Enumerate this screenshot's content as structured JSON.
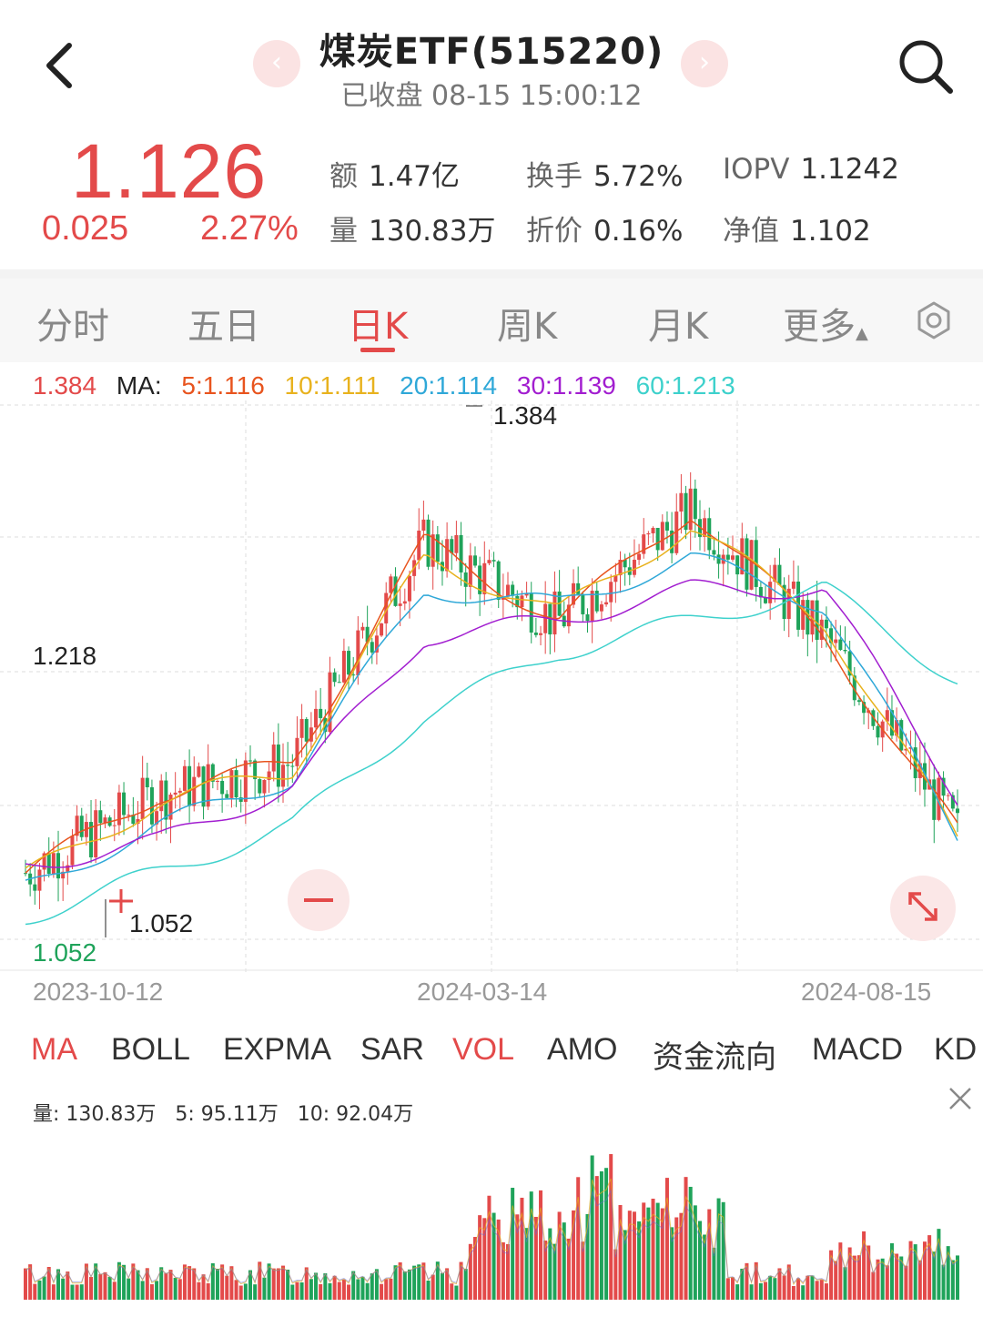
{
  "header": {
    "title": "煤炭ETF(515220)",
    "subtitle": "已收盘 08-15 15:00:12",
    "prev_label": "‹",
    "next_label": "›"
  },
  "quote": {
    "price": "1.126",
    "change": "0.025",
    "change_pct": "2.27%",
    "stats": {
      "amount_label": "额",
      "amount": "1.47亿",
      "turnover_label": "换手",
      "turnover": "5.72%",
      "iopv_label": "IOPV",
      "iopv": "1.1242",
      "volume_label": "量",
      "volume": "130.83万",
      "discount_label": "折价",
      "discount": "0.16%",
      "nav_label": "净值",
      "nav": "1.102"
    }
  },
  "tabs": [
    "分时",
    "五日",
    "日K",
    "周K",
    "月K",
    "更多"
  ],
  "active_tab": "日K",
  "ma_legend": {
    "price": "1.384",
    "label": "MA:",
    "ma5": "5:1.116",
    "ma10": "10:1.111",
    "ma20": "20:1.114",
    "ma30": "30:1.139",
    "ma60": "60:1.213"
  },
  "colors": {
    "up": "#e34a4a",
    "down": "#1fa35a",
    "ma5": "#e8541e",
    "ma10": "#e8b21e",
    "ma20": "#2fa8d8",
    "ma30": "#a21ed0",
    "ma60": "#3ed1cc"
  },
  "chart_data": {
    "type": "line",
    "title": "",
    "ylim": [
      1.052,
      1.384
    ],
    "y_ticks": [
      "1.218",
      "1.052"
    ],
    "high_label": "1.384",
    "low_label": "1.052",
    "current_low_label": "1.052",
    "x_ticks": [
      "2023-10-12",
      "2024-03-14",
      "2024-08-15"
    ],
    "x": [
      "2023-10-12",
      "2023-12-01",
      "2024-01-15",
      "2024-03-14",
      "2024-04-20",
      "2024-05-28",
      "2024-07-01",
      "2024-08-15"
    ],
    "series": [
      {
        "name": "5",
        "values": [
          1.09,
          1.14,
          1.16,
          1.3,
          1.25,
          1.32,
          1.24,
          1.116
        ]
      },
      {
        "name": "10",
        "values": [
          1.088,
          1.135,
          1.155,
          1.29,
          1.255,
          1.31,
          1.25,
          1.111
        ]
      },
      {
        "name": "20",
        "values": [
          1.08,
          1.12,
          1.15,
          1.27,
          1.26,
          1.29,
          1.26,
          1.114
        ]
      },
      {
        "name": "30",
        "values": [
          1.095,
          1.11,
          1.145,
          1.24,
          1.25,
          1.27,
          1.27,
          1.139
        ]
      },
      {
        "name": "60",
        "values": [
          1.062,
          1.09,
          1.12,
          1.19,
          1.23,
          1.25,
          1.27,
          1.213
        ]
      }
    ]
  },
  "indicators": [
    "MA",
    "BOLL",
    "EXPMA",
    "SAR",
    "VOL",
    "AMO",
    "资金流向",
    "MACD",
    "KD"
  ],
  "active_indicators": [
    "MA",
    "VOL"
  ],
  "vol_legend": {
    "vol": "量: 130.83万",
    "ma5": "5: 95.11万",
    "ma10": "10: 92.04万"
  }
}
